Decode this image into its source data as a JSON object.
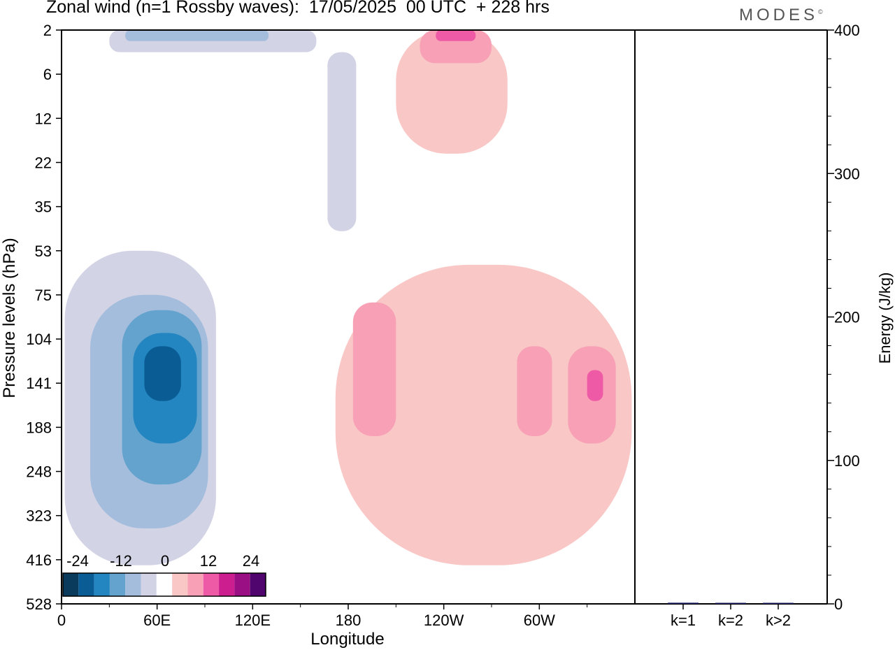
{
  "title": "Zonal wind (n=1 Rossby waves):  17/05/2025  00 UTC  + 228 hrs",
  "logo": "MODES",
  "logo_mark": "©",
  "chart_data": [
    {
      "type": "heatmap",
      "xlabel": "Longitude",
      "ylabel": "Pressure levels (hPa)",
      "x_ticks": [
        "0",
        "60E",
        "120E",
        "180",
        "120W",
        "60W"
      ],
      "y_ticks": [
        "2",
        "6",
        "12",
        "22",
        "35",
        "53",
        "75",
        "104",
        "141",
        "188",
        "248",
        "323",
        "416",
        "528"
      ],
      "colorbar": {
        "labels": [
          "-24",
          "-12",
          "0",
          "12",
          "24"
        ],
        "colors": [
          "#0b3b5c",
          "#0a5c94",
          "#2386c1",
          "#64a3cd",
          "#a4bddc",
          "#d2d3e5",
          "#ffffff",
          "#f9c8c6",
          "#f7a0b6",
          "#ee5aa6",
          "#cd1e8f",
          "#9a0f84",
          "#4f056d"
        ]
      },
      "contours": [
        {
          "level": "-4",
          "color": "#d2d3e5",
          "region": "low-left lobe",
          "lon": [
            2,
            97
          ],
          "hpa": [
            53,
            430
          ]
        },
        {
          "level": "-8",
          "color": "#a4bddc",
          "region": "low-left lobe",
          "lon": [
            18,
            92
          ],
          "hpa": [
            75,
            350
          ]
        },
        {
          "level": "-12",
          "color": "#64a3cd",
          "region": "low-left lobe",
          "lon": [
            38,
            88
          ],
          "hpa": [
            85,
            270
          ]
        },
        {
          "level": "-16",
          "color": "#2386c1",
          "region": "low-left lobe",
          "lon": [
            45,
            85
          ],
          "hpa": [
            100,
            210
          ]
        },
        {
          "level": "-20",
          "color": "#0a5c94",
          "region": "low-left lobe",
          "lon": [
            52,
            75
          ],
          "hpa": [
            110,
            160
          ]
        },
        {
          "level": "-4",
          "color": "#d2d3e5",
          "region": "upper column",
          "lon": [
            167,
            185
          ],
          "hpa": [
            4,
            45
          ]
        },
        {
          "level": "-4",
          "color": "#d2d3e5",
          "region": "top-left",
          "lon": [
            30,
            160
          ],
          "hpa": [
            2,
            4
          ]
        },
        {
          "level": "-8",
          "color": "#a4bddc",
          "region": "top-left",
          "lon": [
            40,
            130
          ],
          "hpa": [
            2,
            3
          ]
        },
        {
          "level": "4",
          "color": "#f9c8c6",
          "region": "top-right",
          "lon": [
            210,
            280
          ],
          "hpa": [
            2,
            20
          ]
        },
        {
          "level": "8",
          "color": "#f7a0b6",
          "region": "top-right",
          "lon": [
            225,
            270
          ],
          "hpa": [
            2,
            5
          ]
        },
        {
          "level": "12",
          "color": "#ee5aa6",
          "region": "top-right",
          "lon": [
            235,
            260
          ],
          "hpa": [
            2,
            3
          ]
        },
        {
          "level": "4",
          "color": "#f9c8c6",
          "region": "right band",
          "lon": [
            172,
            358
          ],
          "hpa": [
            60,
            430
          ]
        },
        {
          "level": "8",
          "color": "#f7a0b6",
          "region": "right band",
          "lon": [
            183,
            210
          ],
          "hpa": [
            80,
            200
          ]
        },
        {
          "level": "8",
          "color": "#f7a0b6",
          "region": "right band",
          "lon": [
            286,
            308
          ],
          "hpa": [
            110,
            200
          ]
        },
        {
          "level": "8",
          "color": "#f7a0b6",
          "region": "right band",
          "lon": [
            318,
            348
          ],
          "hpa": [
            110,
            210
          ]
        },
        {
          "level": "12",
          "color": "#ee5aa6",
          "region": "right band",
          "lon": [
            330,
            340
          ],
          "hpa": [
            130,
            160
          ]
        }
      ]
    },
    {
      "type": "bar",
      "ylabel": "Energy (J/kg)",
      "ylim": [
        0,
        400
      ],
      "y_ticks": [
        "0",
        "100",
        "200",
        "300",
        "400"
      ],
      "categories": [
        "k=1",
        "k=2",
        "k>2"
      ],
      "values": [
        0.8,
        0.3,
        0.6
      ]
    }
  ]
}
